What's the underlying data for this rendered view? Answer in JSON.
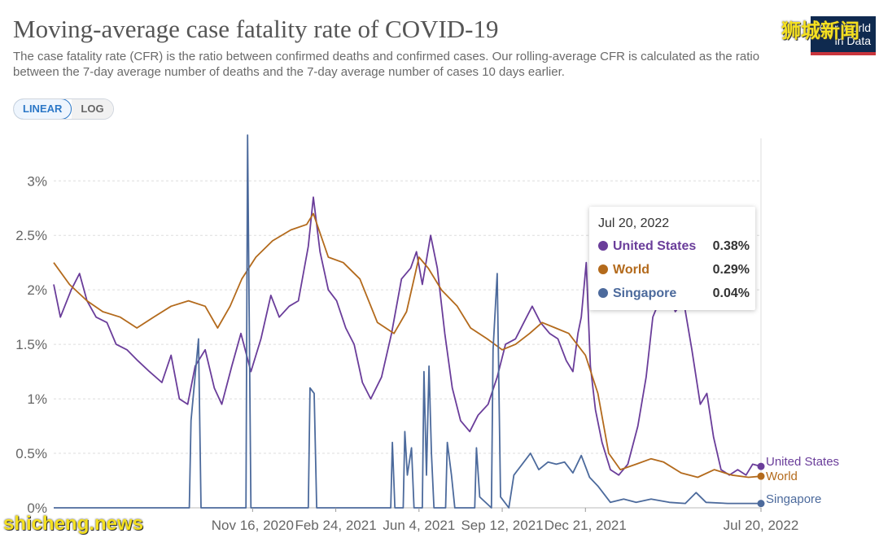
{
  "header": {
    "title": "Moving-average case fatality rate of COVID-19",
    "subtitle": "The case fatality rate (CFR) is the ratio between confirmed deaths and confirmed cases. Our rolling-average CFR is calculated as the ratio between the 7-day average number of deaths and the 7-day average number of cases 10 days earlier."
  },
  "logo": {
    "text": "Our World\nin Data"
  },
  "watermarks": {
    "top": "狮城新闻",
    "bottom": "shicheng.news"
  },
  "scale_toggle": {
    "linear": "LINEAR",
    "log": "LOG",
    "selected": "LINEAR"
  },
  "tooltip": {
    "date": "Jul 20, 2022",
    "rows": [
      {
        "name": "United States",
        "value": "0.38%",
        "color": "#6a3d9a"
      },
      {
        "name": "World",
        "value": "0.29%",
        "color": "#b36a1c"
      },
      {
        "name": "Singapore",
        "value": "0.04%",
        "color": "#4c6a9c"
      }
    ]
  },
  "chart_data": {
    "type": "line",
    "x_start": "2020-03-22",
    "x_end": "2022-07-20",
    "y_unit": "%",
    "ylim": [
      0,
      3.45
    ],
    "y_ticks": [
      {
        "value": 0,
        "label": "0%"
      },
      {
        "value": 0.5,
        "label": "0.5%"
      },
      {
        "value": 1,
        "label": "1%"
      },
      {
        "value": 1.5,
        "label": "1.5%"
      },
      {
        "value": 2,
        "label": "2%"
      },
      {
        "value": 2.5,
        "label": "2.5%"
      },
      {
        "value": 3,
        "label": "3%"
      }
    ],
    "x_ticks": [
      {
        "date": "2020-11-16",
        "label": "Nov 16, 2020"
      },
      {
        "date": "2021-02-24",
        "label": "Feb 24, 2021"
      },
      {
        "date": "2021-06-04",
        "label": "Jun 4, 2021"
      },
      {
        "date": "2021-09-12",
        "label": "Sep 12, 2021"
      },
      {
        "date": "2021-12-21",
        "label": "Dec 21, 2021"
      },
      {
        "date": "2022-07-20",
        "label": "Jul 20, 2022"
      }
    ],
    "grid": "horizontal dashed",
    "series": [
      {
        "name": "United States",
        "color": "#6a3d9a",
        "points": [
          [
            "2020-03-22",
            2.05
          ],
          [
            "2020-03-30",
            1.75
          ],
          [
            "2020-04-12",
            2.0
          ],
          [
            "2020-04-22",
            2.15
          ],
          [
            "2020-05-01",
            1.9
          ],
          [
            "2020-05-12",
            1.75
          ],
          [
            "2020-05-25",
            1.7
          ],
          [
            "2020-06-05",
            1.5
          ],
          [
            "2020-06-18",
            1.45
          ],
          [
            "2020-07-01",
            1.35
          ],
          [
            "2020-07-15",
            1.25
          ],
          [
            "2020-07-30",
            1.15
          ],
          [
            "2020-08-10",
            1.4
          ],
          [
            "2020-08-20",
            1.0
          ],
          [
            "2020-08-30",
            0.95
          ],
          [
            "2020-09-08",
            1.3
          ],
          [
            "2020-09-20",
            1.45
          ],
          [
            "2020-10-01",
            1.1
          ],
          [
            "2020-10-10",
            0.95
          ],
          [
            "2020-10-22",
            1.3
          ],
          [
            "2020-11-02",
            1.6
          ],
          [
            "2020-11-14",
            1.25
          ],
          [
            "2020-11-26",
            1.55
          ],
          [
            "2020-12-08",
            1.95
          ],
          [
            "2020-12-18",
            1.75
          ],
          [
            "2020-12-30",
            1.85
          ],
          [
            "2021-01-10",
            1.9
          ],
          [
            "2021-01-22",
            2.4
          ],
          [
            "2021-01-28",
            2.85
          ],
          [
            "2021-02-05",
            2.35
          ],
          [
            "2021-02-15",
            2.0
          ],
          [
            "2021-02-25",
            1.9
          ],
          [
            "2021-03-08",
            1.65
          ],
          [
            "2021-03-18",
            1.5
          ],
          [
            "2021-03-28",
            1.15
          ],
          [
            "2021-04-07",
            1.0
          ],
          [
            "2021-04-20",
            1.2
          ],
          [
            "2021-05-02",
            1.6
          ],
          [
            "2021-05-14",
            2.1
          ],
          [
            "2021-05-25",
            2.2
          ],
          [
            "2021-06-01",
            2.35
          ],
          [
            "2021-06-08",
            2.05
          ],
          [
            "2021-06-18",
            2.5
          ],
          [
            "2021-06-26",
            2.2
          ],
          [
            "2021-07-05",
            1.6
          ],
          [
            "2021-07-14",
            1.1
          ],
          [
            "2021-07-24",
            0.8
          ],
          [
            "2021-08-04",
            0.7
          ],
          [
            "2021-08-14",
            0.85
          ],
          [
            "2021-08-26",
            0.95
          ],
          [
            "2021-09-06",
            1.2
          ],
          [
            "2021-09-16",
            1.5
          ],
          [
            "2021-09-28",
            1.55
          ],
          [
            "2021-10-08",
            1.7
          ],
          [
            "2021-10-18",
            1.85
          ],
          [
            "2021-10-28",
            1.7
          ],
          [
            "2021-11-08",
            1.6
          ],
          [
            "2021-11-18",
            1.55
          ],
          [
            "2021-11-28",
            1.35
          ],
          [
            "2021-12-06",
            1.25
          ],
          [
            "2021-12-12",
            1.6
          ],
          [
            "2021-12-16",
            1.75
          ],
          [
            "2021-12-22",
            2.25
          ],
          [
            "2021-12-27",
            1.3
          ],
          [
            "2022-01-02",
            0.9
          ],
          [
            "2022-01-10",
            0.6
          ],
          [
            "2022-01-20",
            0.35
          ],
          [
            "2022-01-30",
            0.3
          ],
          [
            "2022-02-10",
            0.4
          ],
          [
            "2022-02-22",
            0.75
          ],
          [
            "2022-03-04",
            1.2
          ],
          [
            "2022-03-12",
            1.75
          ],
          [
            "2022-03-20",
            1.9
          ],
          [
            "2022-03-30",
            2.0
          ],
          [
            "2022-04-08",
            1.8
          ],
          [
            "2022-04-18",
            1.9
          ],
          [
            "2022-04-28",
            1.45
          ],
          [
            "2022-05-08",
            0.95
          ],
          [
            "2022-05-16",
            1.05
          ],
          [
            "2022-05-24",
            0.65
          ],
          [
            "2022-06-02",
            0.35
          ],
          [
            "2022-06-12",
            0.3
          ],
          [
            "2022-06-22",
            0.35
          ],
          [
            "2022-07-02",
            0.3
          ],
          [
            "2022-07-10",
            0.4
          ],
          [
            "2022-07-20",
            0.38
          ]
        ]
      },
      {
        "name": "World",
        "color": "#b36a1c",
        "points": [
          [
            "2020-03-22",
            2.25
          ],
          [
            "2020-04-10",
            2.05
          ],
          [
            "2020-05-01",
            1.9
          ],
          [
            "2020-05-20",
            1.8
          ],
          [
            "2020-06-10",
            1.75
          ],
          [
            "2020-06-30",
            1.65
          ],
          [
            "2020-07-20",
            1.75
          ],
          [
            "2020-08-10",
            1.85
          ],
          [
            "2020-08-31",
            1.9
          ],
          [
            "2020-09-20",
            1.85
          ],
          [
            "2020-10-05",
            1.65
          ],
          [
            "2020-10-20",
            1.85
          ],
          [
            "2020-11-03",
            2.1
          ],
          [
            "2020-11-20",
            2.3
          ],
          [
            "2020-12-10",
            2.45
          ],
          [
            "2021-01-01",
            2.55
          ],
          [
            "2021-01-20",
            2.6
          ],
          [
            "2021-01-28",
            2.7
          ],
          [
            "2021-02-15",
            2.3
          ],
          [
            "2021-03-05",
            2.25
          ],
          [
            "2021-03-25",
            2.1
          ],
          [
            "2021-04-15",
            1.7
          ],
          [
            "2021-05-05",
            1.6
          ],
          [
            "2021-05-20",
            1.8
          ],
          [
            "2021-06-04",
            2.3
          ],
          [
            "2021-06-15",
            2.2
          ],
          [
            "2021-07-01",
            2.0
          ],
          [
            "2021-07-20",
            1.85
          ],
          [
            "2021-08-05",
            1.65
          ],
          [
            "2021-08-25",
            1.55
          ],
          [
            "2021-09-12",
            1.45
          ],
          [
            "2021-09-28",
            1.5
          ],
          [
            "2021-10-15",
            1.6
          ],
          [
            "2021-10-30",
            1.7
          ],
          [
            "2021-11-15",
            1.65
          ],
          [
            "2021-12-01",
            1.6
          ],
          [
            "2021-12-21",
            1.4
          ],
          [
            "2022-01-05",
            1.05
          ],
          [
            "2022-01-18",
            0.5
          ],
          [
            "2022-02-01",
            0.35
          ],
          [
            "2022-02-20",
            0.4
          ],
          [
            "2022-03-10",
            0.45
          ],
          [
            "2022-03-25",
            0.42
          ],
          [
            "2022-04-15",
            0.32
          ],
          [
            "2022-05-05",
            0.28
          ],
          [
            "2022-05-25",
            0.35
          ],
          [
            "2022-06-15",
            0.3
          ],
          [
            "2022-07-05",
            0.28
          ],
          [
            "2022-07-20",
            0.29
          ]
        ]
      },
      {
        "name": "Singapore",
        "color": "#4c6a9c",
        "points": [
          [
            "2020-03-22",
            0.0
          ],
          [
            "2020-09-01",
            0.0
          ],
          [
            "2020-09-03",
            0.8
          ],
          [
            "2020-09-12",
            1.55
          ],
          [
            "2020-09-15",
            0.0
          ],
          [
            "2020-11-08",
            0.0
          ],
          [
            "2020-11-10",
            3.42
          ],
          [
            "2020-11-14",
            0.0
          ],
          [
            "2021-01-22",
            0.0
          ],
          [
            "2021-01-24",
            1.1
          ],
          [
            "2021-01-29",
            1.05
          ],
          [
            "2021-02-01",
            0.0
          ],
          [
            "2021-05-01",
            0.0
          ],
          [
            "2021-05-03",
            0.6
          ],
          [
            "2021-05-06",
            0.0
          ],
          [
            "2021-05-16",
            0.0
          ],
          [
            "2021-05-18",
            0.7
          ],
          [
            "2021-05-21",
            0.3
          ],
          [
            "2021-05-26",
            0.55
          ],
          [
            "2021-05-29",
            0.0
          ],
          [
            "2021-06-08",
            0.0
          ],
          [
            "2021-06-10",
            1.25
          ],
          [
            "2021-06-13",
            0.3
          ],
          [
            "2021-06-16",
            1.3
          ],
          [
            "2021-06-19",
            0.5
          ],
          [
            "2021-06-22",
            0.0
          ],
          [
            "2021-07-06",
            0.0
          ],
          [
            "2021-07-08",
            0.6
          ],
          [
            "2021-07-13",
            0.3
          ],
          [
            "2021-07-17",
            0.0
          ],
          [
            "2021-08-10",
            0.0
          ],
          [
            "2021-08-12",
            0.55
          ],
          [
            "2021-08-16",
            0.1
          ],
          [
            "2021-08-30",
            0.0
          ],
          [
            "2021-09-01",
            1.45
          ],
          [
            "2021-09-06",
            2.15
          ],
          [
            "2021-09-10",
            0.1
          ],
          [
            "2021-09-20",
            0.0
          ],
          [
            "2021-09-26",
            0.3
          ],
          [
            "2021-10-06",
            0.4
          ],
          [
            "2021-10-16",
            0.5
          ],
          [
            "2021-10-26",
            0.35
          ],
          [
            "2021-11-06",
            0.42
          ],
          [
            "2021-11-16",
            0.4
          ],
          [
            "2021-11-26",
            0.42
          ],
          [
            "2021-12-06",
            0.32
          ],
          [
            "2021-12-16",
            0.48
          ],
          [
            "2021-12-26",
            0.28
          ],
          [
            "2022-01-05",
            0.2
          ],
          [
            "2022-01-20",
            0.05
          ],
          [
            "2022-02-05",
            0.08
          ],
          [
            "2022-02-20",
            0.05
          ],
          [
            "2022-03-10",
            0.08
          ],
          [
            "2022-04-01",
            0.05
          ],
          [
            "2022-04-20",
            0.04
          ],
          [
            "2022-05-03",
            0.14
          ],
          [
            "2022-05-15",
            0.05
          ],
          [
            "2022-06-10",
            0.04
          ],
          [
            "2022-07-20",
            0.04
          ]
        ]
      }
    ],
    "end_labels": [
      "United States",
      "World",
      "Singapore"
    ]
  }
}
